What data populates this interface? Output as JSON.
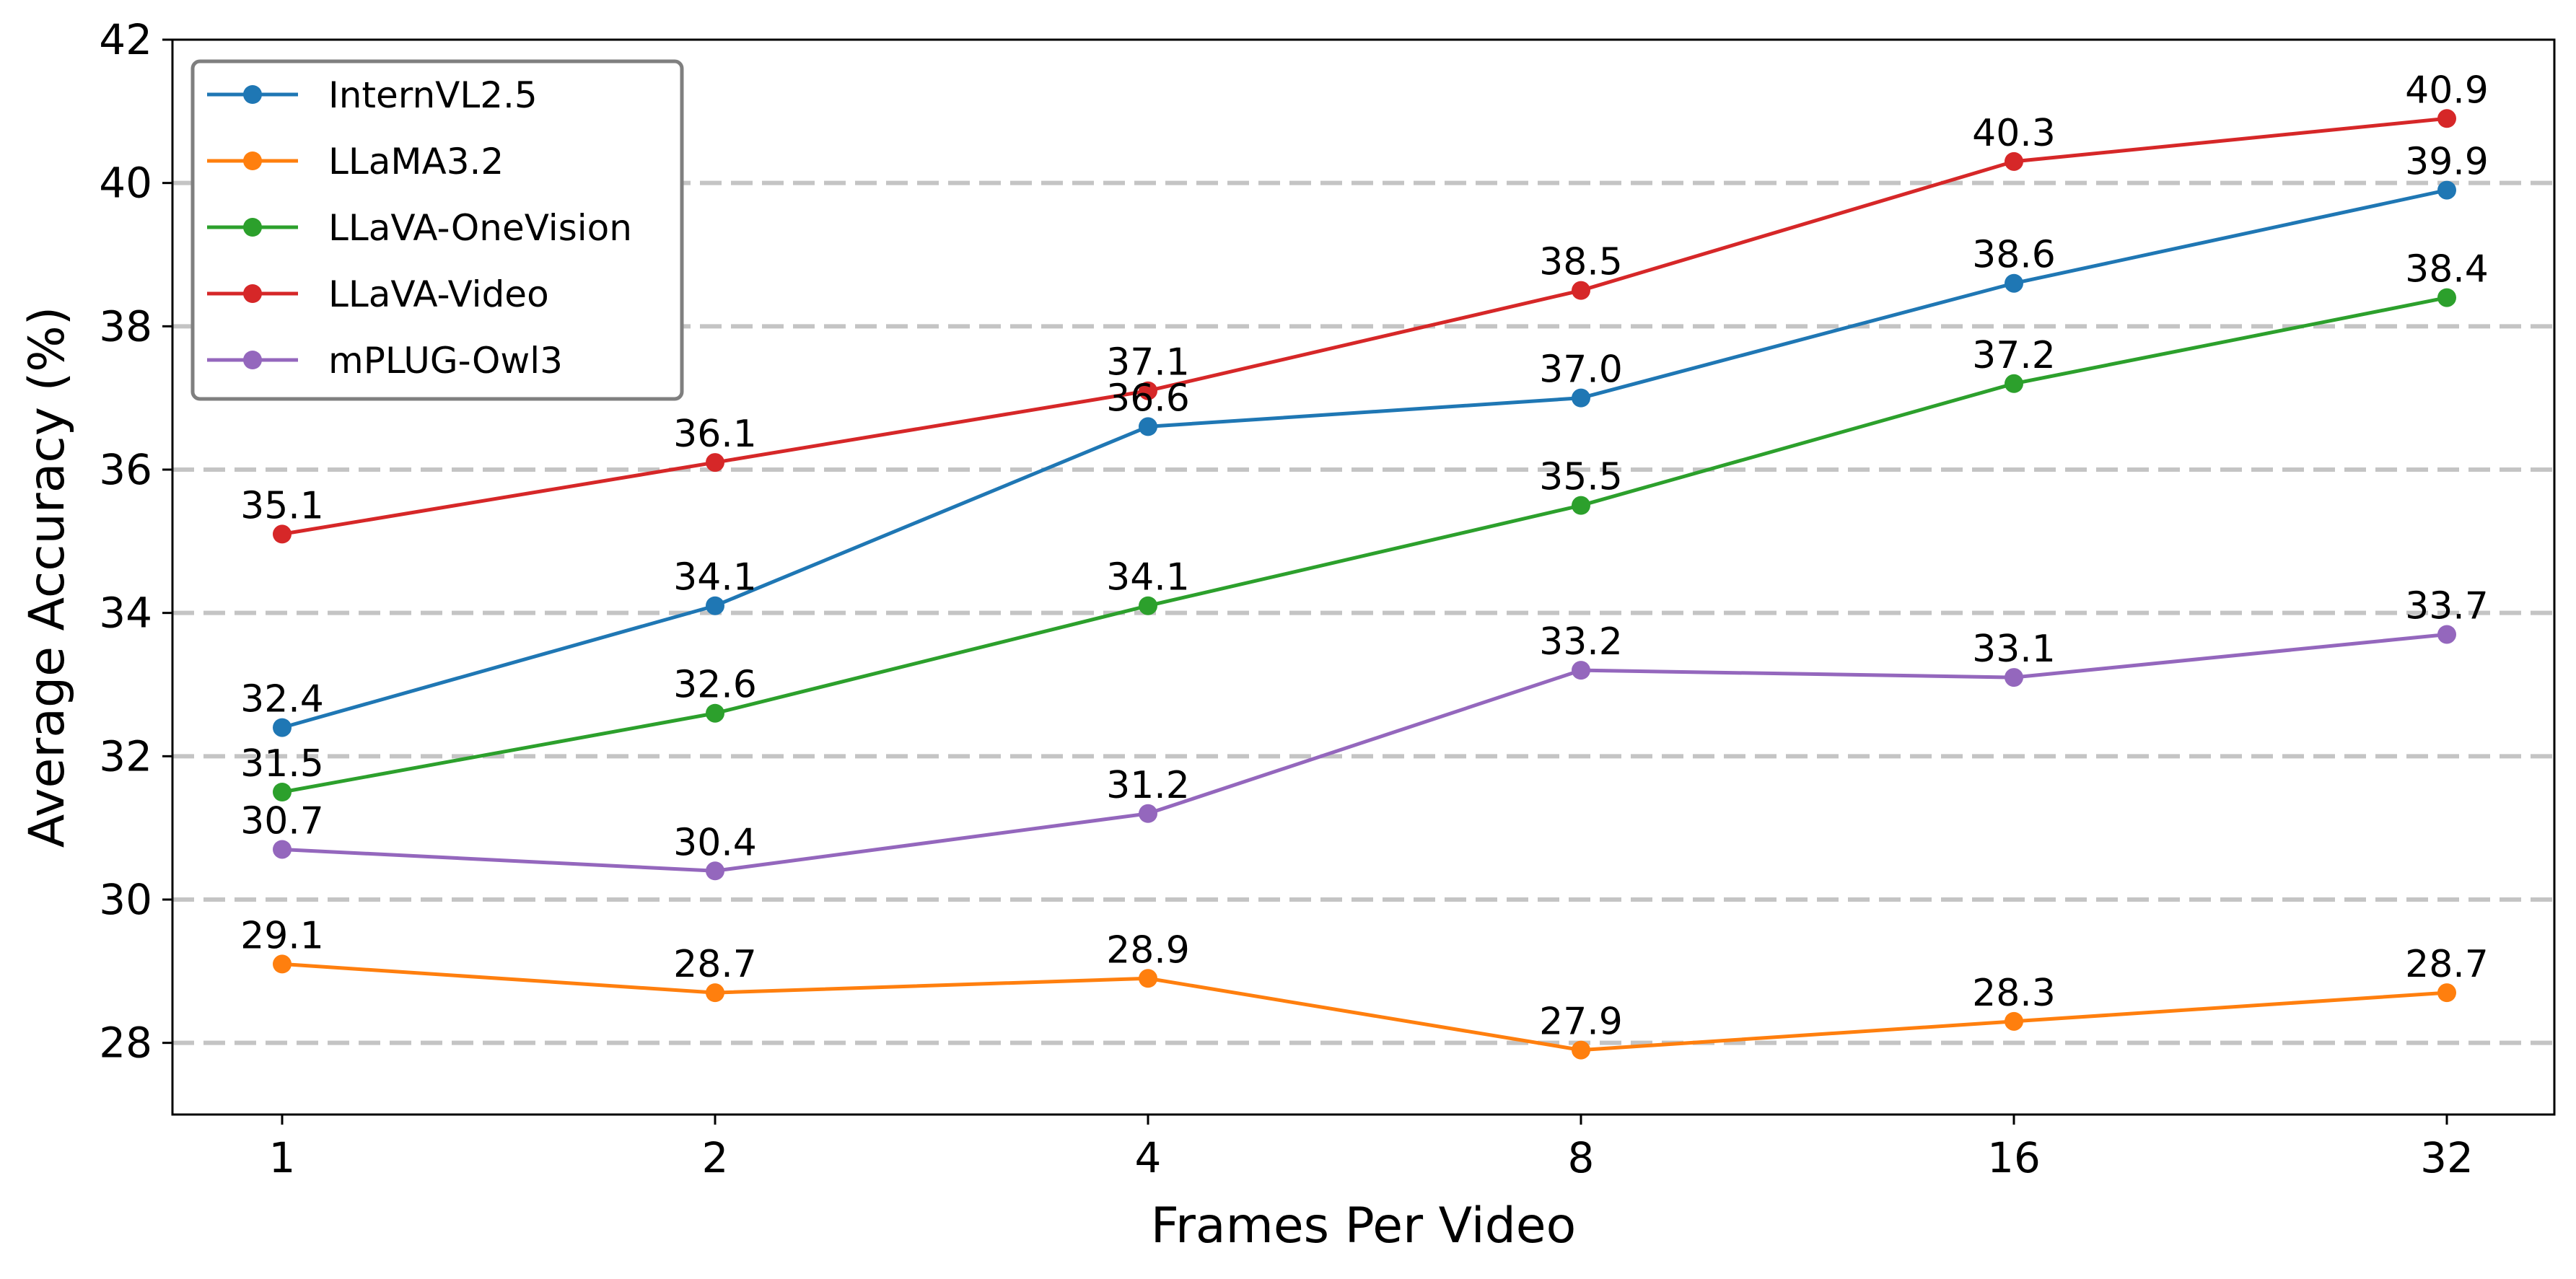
{
  "chart_data": {
    "type": "line",
    "title": "",
    "xlabel": "Frames Per Video",
    "ylabel": "Average Accuracy (%)",
    "categories": [
      "1",
      "2",
      "4",
      "8",
      "16",
      "32"
    ],
    "ylim": [
      27,
      42
    ],
    "yticks": [
      28,
      30,
      32,
      34,
      36,
      38,
      40,
      42
    ],
    "grid": "horizontal dashed at y ticks 28-40",
    "legend_position": "top-left",
    "series": [
      {
        "name": "InternVL2.5",
        "color": "#1f77b4",
        "values": [
          32.4,
          34.1,
          36.6,
          37.0,
          38.6,
          39.9
        ]
      },
      {
        "name": "LLaMA3.2",
        "color": "#ff7f0e",
        "values": [
          29.1,
          28.7,
          28.9,
          27.9,
          28.3,
          28.7
        ]
      },
      {
        "name": "LLaVA-OneVision",
        "color": "#2ca02c",
        "values": [
          31.5,
          32.6,
          34.1,
          35.5,
          37.2,
          38.4
        ]
      },
      {
        "name": "LLaVA-Video",
        "color": "#d62728",
        "values": [
          35.1,
          36.1,
          37.1,
          38.5,
          40.3,
          40.9
        ]
      },
      {
        "name": "mPLUG-Owl3",
        "color": "#9467bd",
        "values": [
          30.7,
          30.4,
          31.2,
          33.2,
          33.1,
          33.7
        ]
      }
    ]
  }
}
